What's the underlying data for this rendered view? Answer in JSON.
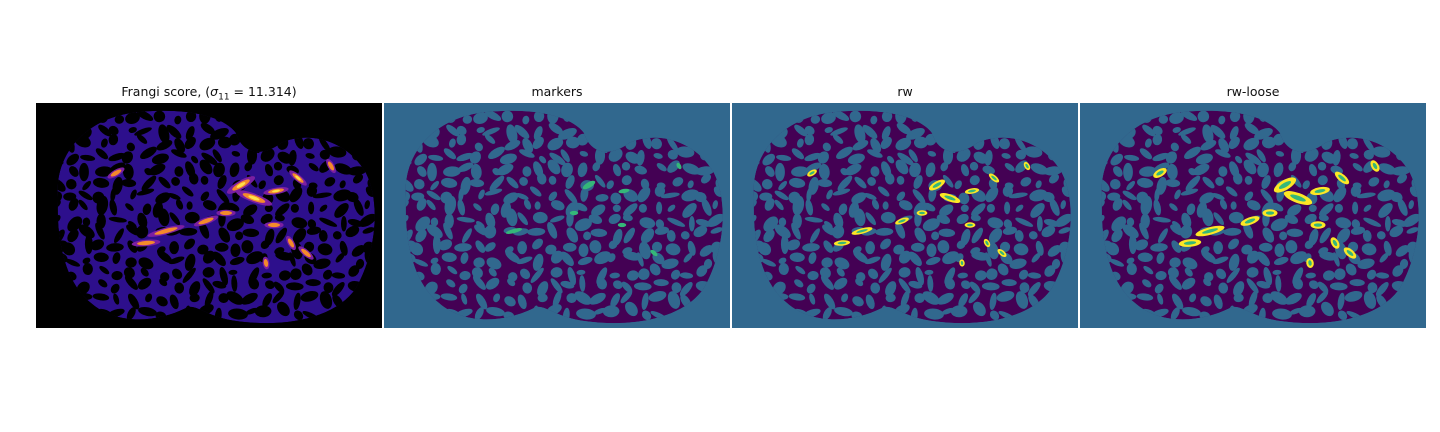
{
  "figure": {
    "panels": [
      {
        "id": "frangi",
        "title_prefix": "Frangi score, (",
        "title_sigma": "σ",
        "title_sub": "11",
        "title_suffix": " = 11.314)"
      },
      {
        "id": "markers",
        "title": "markers"
      },
      {
        "id": "rw",
        "title": "rw"
      },
      {
        "id": "rw-loose",
        "title": "rw-loose"
      }
    ],
    "colors": {
      "frangi_bg": "#000000",
      "frangi_tissue": "#2d0f8c",
      "frangi_mid": "#7b1fa2",
      "frangi_hot": "#f48a2b",
      "frangi_peak": "#fde14a",
      "seg_bg": "#31688e",
      "seg_tissue": "#440154",
      "seg_marker": "#35b779",
      "seg_highlight": "#fde725"
    }
  }
}
